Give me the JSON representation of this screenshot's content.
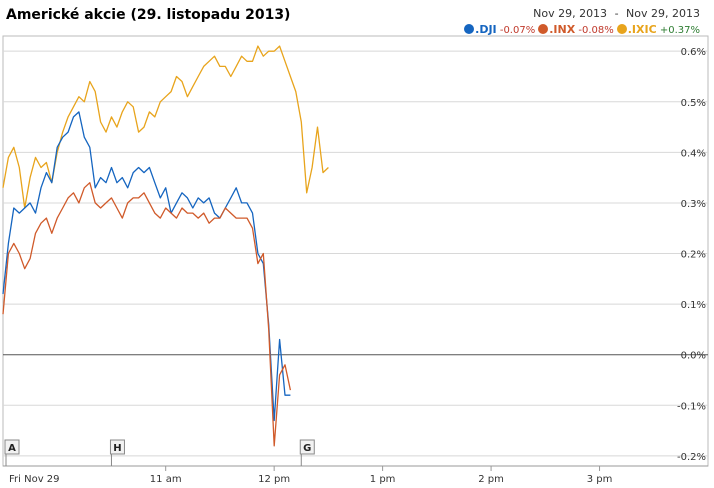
{
  "header": {
    "title": "Americké akcie (29. listopadu 2013)",
    "range_start": "Nov 29, 2013",
    "range_end": "Nov 29, 2013",
    "range_sep": "-"
  },
  "legend": [
    {
      "name": ".DJI",
      "change": "-0.07%",
      "color": "#1565c0",
      "change_color": "#c0392b"
    },
    {
      "name": ".INX",
      "change": "-0.08%",
      "color": "#d05a2a",
      "change_color": "#c0392b"
    },
    {
      "name": ".IXIC",
      "change": "+0.37%",
      "color": "#e8a41c",
      "change_color": "#2e7d32"
    }
  ],
  "flags": [
    {
      "label": "A",
      "x": 9.5
    },
    {
      "label": "H",
      "x": 10.5
    },
    {
      "label": "G",
      "x": 12.25
    }
  ],
  "chart_data": {
    "type": "line",
    "title": "Americké akcie (29. listopadu 2013)",
    "xlabel": "",
    "ylabel": "",
    "x_unit": "hour of day",
    "xlim": [
      9.5,
      16.0
    ],
    "ylim": [
      -0.22,
      0.63
    ],
    "yticks": [
      0.6,
      0.5,
      0.4,
      0.3,
      0.2,
      0.1,
      0.0,
      -0.1,
      -0.2
    ],
    "ytick_labels": [
      "0.6%",
      "0.5%",
      "0.4%",
      "0.3%",
      "0.2%",
      "0.1%",
      "0.0%",
      "-0.1%",
      "-0.2%"
    ],
    "xticks": [
      9.5,
      11,
      12,
      13,
      14,
      15
    ],
    "xtick_labels": [
      "Fri Nov 29",
      "11 am",
      "12 pm",
      "1 pm",
      "2 pm",
      "3 pm"
    ],
    "grid": true,
    "series": [
      {
        "name": ".IXIC",
        "color": "#e8a41c",
        "x": [
          9.5,
          9.55,
          9.6,
          9.65,
          9.7,
          9.75,
          9.8,
          9.85,
          9.9,
          9.95,
          10.0,
          10.05,
          10.1,
          10.15,
          10.2,
          10.25,
          10.3,
          10.35,
          10.4,
          10.45,
          10.5,
          10.55,
          10.6,
          10.65,
          10.7,
          10.75,
          10.8,
          10.85,
          10.9,
          10.95,
          11.0,
          11.05,
          11.1,
          11.15,
          11.2,
          11.25,
          11.3,
          11.35,
          11.4,
          11.45,
          11.5,
          11.55,
          11.6,
          11.65,
          11.7,
          11.75,
          11.8,
          11.85,
          11.9,
          11.95,
          12.0,
          12.05,
          12.1,
          12.15,
          12.2,
          12.25,
          12.3,
          12.35,
          12.4,
          12.45,
          12.5,
          12.55,
          12.6,
          12.65,
          12.7,
          12.75,
          12.8,
          12.85,
          12.9,
          12.95,
          13.0
        ],
        "values": [
          0.33,
          0.39,
          0.41,
          0.37,
          0.29,
          0.35,
          0.39,
          0.37,
          0.38,
          0.34,
          0.4,
          0.44,
          0.47,
          0.49,
          0.51,
          0.5,
          0.54,
          0.52,
          0.46,
          0.44,
          0.47,
          0.45,
          0.48,
          0.5,
          0.49,
          0.44,
          0.45,
          0.48,
          0.47,
          0.5,
          0.51,
          0.52,
          0.55,
          0.54,
          0.51,
          0.53,
          0.55,
          0.57,
          0.58,
          0.59,
          0.57,
          0.57,
          0.55,
          0.57,
          0.59,
          0.58,
          0.58,
          0.61,
          0.59,
          0.6,
          0.6,
          0.61,
          0.58,
          0.55,
          0.52,
          0.46,
          0.32,
          0.37,
          0.45,
          0.36,
          0.37,
          null,
          null,
          null,
          null,
          null,
          null,
          null,
          null,
          null,
          null
        ]
      },
      {
        "name": ".DJI",
        "color": "#1565c0",
        "x": [
          9.5,
          9.55,
          9.6,
          9.65,
          9.7,
          9.75,
          9.8,
          9.85,
          9.9,
          9.95,
          10.0,
          10.05,
          10.1,
          10.15,
          10.2,
          10.25,
          10.3,
          10.35,
          10.4,
          10.45,
          10.5,
          10.55,
          10.6,
          10.65,
          10.7,
          10.75,
          10.8,
          10.85,
          10.9,
          10.95,
          11.0,
          11.05,
          11.1,
          11.15,
          11.2,
          11.25,
          11.3,
          11.35,
          11.4,
          11.45,
          11.5,
          11.55,
          11.6,
          11.65,
          11.7,
          11.75,
          11.8,
          11.85,
          11.9,
          11.95,
          12.0,
          12.05,
          12.1,
          12.15,
          12.2,
          12.25,
          12.3,
          12.35,
          12.4,
          12.45,
          12.5
        ],
        "values": [
          0.12,
          0.22,
          0.29,
          0.28,
          0.29,
          0.3,
          0.28,
          0.33,
          0.36,
          0.34,
          0.41,
          0.43,
          0.44,
          0.47,
          0.48,
          0.43,
          0.41,
          0.33,
          0.35,
          0.34,
          0.37,
          0.34,
          0.35,
          0.33,
          0.36,
          0.37,
          0.36,
          0.37,
          0.34,
          0.31,
          0.33,
          0.28,
          0.3,
          0.32,
          0.31,
          0.29,
          0.31,
          0.3,
          0.31,
          0.28,
          0.27,
          0.29,
          0.31,
          0.33,
          0.3,
          0.3,
          0.28,
          0.2,
          0.18,
          0.06,
          -0.13,
          0.03,
          -0.08,
          -0.08,
          null,
          null,
          null,
          null,
          null,
          null,
          null
        ]
      },
      {
        "name": ".INX",
        "color": "#d05a2a",
        "x": [
          9.5,
          9.55,
          9.6,
          9.65,
          9.7,
          9.75,
          9.8,
          9.85,
          9.9,
          9.95,
          10.0,
          10.05,
          10.1,
          10.15,
          10.2,
          10.25,
          10.3,
          10.35,
          10.4,
          10.45,
          10.5,
          10.55,
          10.6,
          10.65,
          10.7,
          10.75,
          10.8,
          10.85,
          10.9,
          10.95,
          11.0,
          11.05,
          11.1,
          11.15,
          11.2,
          11.25,
          11.3,
          11.35,
          11.4,
          11.45,
          11.5,
          11.55,
          11.6,
          11.65,
          11.7,
          11.75,
          11.8,
          11.85,
          11.9,
          11.95,
          12.0,
          12.05,
          12.1,
          12.15,
          12.2,
          12.25,
          12.3,
          12.35,
          12.4,
          12.45,
          12.5
        ],
        "values": [
          0.08,
          0.2,
          0.22,
          0.2,
          0.17,
          0.19,
          0.24,
          0.26,
          0.27,
          0.24,
          0.27,
          0.29,
          0.31,
          0.32,
          0.3,
          0.33,
          0.34,
          0.3,
          0.29,
          0.3,
          0.31,
          0.29,
          0.27,
          0.3,
          0.31,
          0.31,
          0.32,
          0.3,
          0.28,
          0.27,
          0.29,
          0.28,
          0.27,
          0.29,
          0.28,
          0.28,
          0.27,
          0.28,
          0.26,
          0.27,
          0.27,
          0.29,
          0.28,
          0.27,
          0.27,
          0.27,
          0.25,
          0.18,
          0.2,
          0.05,
          -0.18,
          -0.04,
          -0.02,
          -0.07,
          null,
          null,
          null,
          null,
          null,
          null,
          null
        ]
      }
    ]
  }
}
